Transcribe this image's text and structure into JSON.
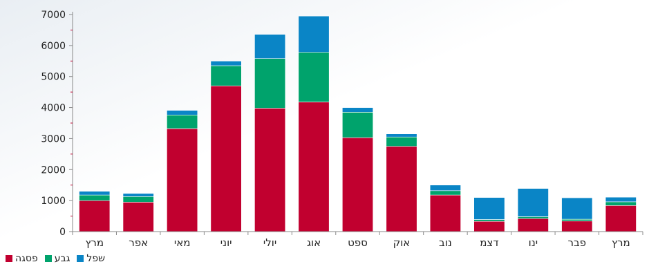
{
  "chart_data": {
    "type": "bar",
    "stacked": true,
    "categories": [
      "מרץ",
      "אפר",
      "מאי",
      "יוני",
      "יולי",
      "אוג",
      "ספט",
      "אוק",
      "נוב",
      "דצמ",
      "ינו",
      "פבר",
      "מרץ"
    ],
    "series": [
      {
        "name": "פסגה",
        "color": "#c1002f",
        "values": [
          1000,
          950,
          3320,
          4700,
          3980,
          4180,
          3030,
          2750,
          1180,
          330,
          420,
          340,
          840
        ]
      },
      {
        "name": "גבע",
        "color": "#00a36c",
        "values": [
          180,
          180,
          440,
          650,
          1600,
          1600,
          820,
          300,
          140,
          60,
          60,
          60,
          120
        ]
      },
      {
        "name": "שפל",
        "color": "#0a85c6",
        "values": [
          120,
          100,
          150,
          150,
          780,
          1170,
          150,
          100,
          180,
          710,
          910,
          690,
          150
        ]
      }
    ],
    "ylim": [
      0,
      7000
    ],
    "yticks": [
      0,
      1000,
      2000,
      3000,
      4000,
      5000,
      6000,
      7000
    ],
    "grid": false,
    "legend_position": "bottom-left",
    "title": "",
    "xlabel": "",
    "ylabel": ""
  }
}
